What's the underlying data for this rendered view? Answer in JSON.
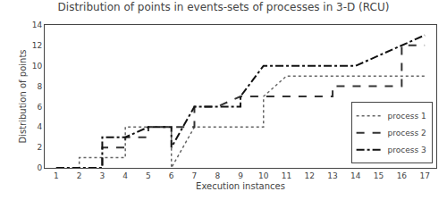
{
  "chart_data": {
    "type": "line",
    "title": "Distribution of points in events-sets of processes in 3-D (RCU)",
    "x_label": "Execution instances",
    "y_label": "Distribution of points",
    "xlim": [
      0.5,
      17.5
    ],
    "ylim": [
      0,
      14
    ],
    "xticks": [
      1,
      2,
      3,
      4,
      5,
      6,
      7,
      8,
      9,
      10,
      11,
      12,
      13,
      14,
      15,
      16,
      17
    ],
    "yticks": [
      0,
      2,
      4,
      6,
      8,
      10,
      12,
      14
    ],
    "grid": false,
    "legend": "lower right",
    "series": [
      {
        "name": "process 1",
        "color": "#666666",
        "line_style": "dotted",
        "x": [
          1,
          2,
          2,
          3,
          4,
          4,
          5,
          6,
          6,
          7,
          8,
          9,
          10,
          10,
          11,
          12,
          13,
          14,
          15,
          16,
          17
        ],
        "values": [
          0,
          0,
          1,
          1,
          1,
          4,
          4,
          4,
          0,
          4,
          4,
          4,
          4,
          7,
          9,
          9,
          9,
          9,
          9,
          9,
          9
        ]
      },
      {
        "name": "process 2",
        "color": "#333333",
        "line_style": "dashed",
        "x": [
          1,
          2,
          3,
          3,
          4,
          4,
          5,
          5,
          6,
          7,
          7,
          8,
          9,
          10,
          11,
          12,
          13,
          13,
          14,
          15,
          16,
          16,
          17
        ],
        "values": [
          0,
          0,
          0,
          2,
          2,
          3,
          3,
          4,
          4,
          4,
          6,
          6,
          7,
          7,
          7,
          7,
          7,
          8,
          8,
          8,
          8,
          12,
          12
        ]
      },
      {
        "name": "process 3",
        "color": "#111111",
        "line_style": "dashdot",
        "x": [
          1,
          2,
          3,
          3,
          4,
          5,
          6,
          6,
          7,
          8,
          9,
          9,
          10,
          11,
          12,
          12,
          13,
          14,
          15,
          16,
          17
        ],
        "values": [
          0,
          0,
          0,
          3,
          3,
          4,
          4,
          2,
          6,
          6,
          6,
          7,
          10,
          10,
          10,
          10,
          10,
          10,
          11,
          12,
          13
        ]
      }
    ]
  }
}
